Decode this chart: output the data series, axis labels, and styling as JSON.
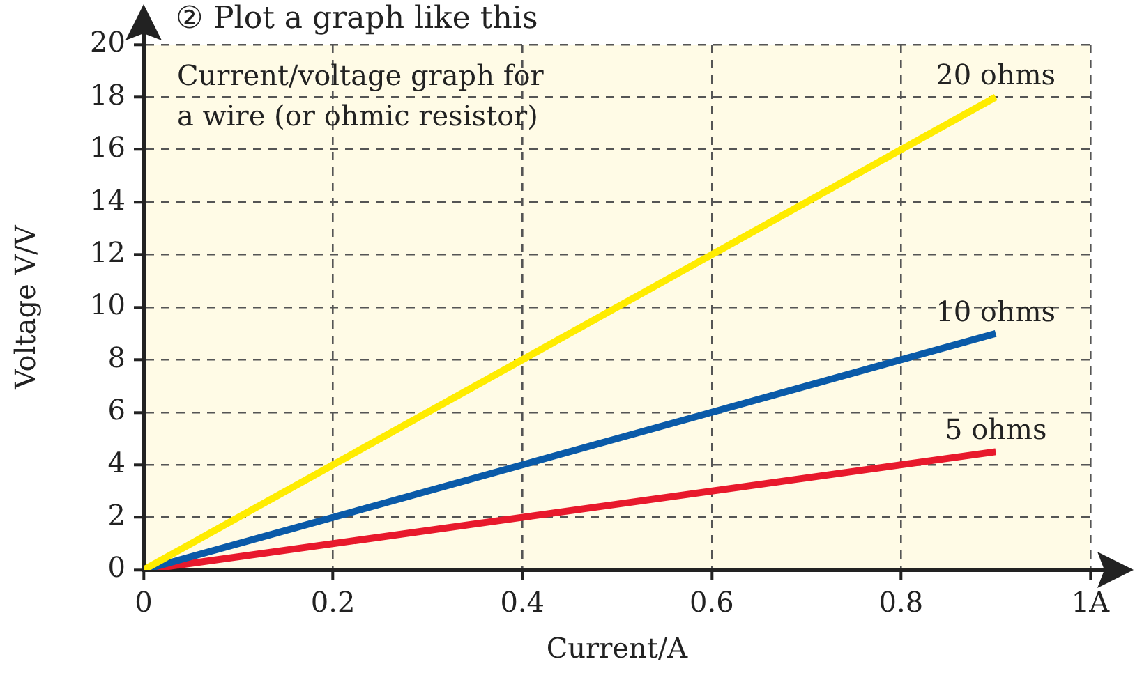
{
  "chart_data": {
    "type": "line",
    "title": "② Plot a graph like this",
    "xlabel": "Current/A",
    "ylabel": "Voltage V/V",
    "annotations": [
      "Current/voltage graph for a wire (or ohmic resistor)"
    ],
    "x": [
      0,
      0.9
    ],
    "series": [
      {
        "name": "20 ohms",
        "color": "#ffec00",
        "values": [
          0,
          18
        ]
      },
      {
        "name": "10 ohms",
        "color": "#0a5aa8",
        "values": [
          0,
          9
        ]
      },
      {
        "name": "5 ohms",
        "color": "#e8192c",
        "values": [
          0,
          4.5
        ]
      }
    ],
    "xlim": [
      0,
      1
    ],
    "ylim": [
      0,
      20
    ],
    "xticks": [
      0,
      0.2,
      0.4,
      0.6,
      0.8,
      {
        "value": 1,
        "label": "1A"
      }
    ],
    "yticks": [
      0,
      2,
      4,
      6,
      8,
      10,
      12,
      14,
      16,
      18,
      20
    ],
    "grid": true,
    "legend": false,
    "marker": "none",
    "line_style": "solid"
  }
}
